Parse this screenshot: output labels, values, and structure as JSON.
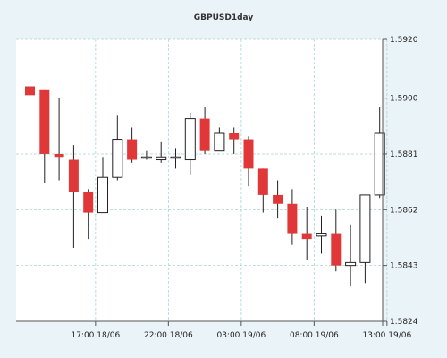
{
  "chart_data": {
    "type": "candlestick",
    "title": "GBPUSD1day",
    "xlabel": "",
    "ylabel": "",
    "ylim": [
      1.5824,
      1.592
    ],
    "y_ticks": [
      "1.5824",
      "1.5843",
      "1.5862",
      "1.5881",
      "1.5900",
      "1.5920"
    ],
    "x_ticks": [
      {
        "label": "17:00 18/06",
        "index": 4.5
      },
      {
        "label": "22:00 18/06",
        "index": 9.5
      },
      {
        "label": "03:00 19/06",
        "index": 14.5
      },
      {
        "label": "08:00 19/06",
        "index": 19.5
      },
      {
        "label": "13:00 19/06",
        "index": 24.5
      }
    ],
    "grid": true,
    "up_color": "#ffffff",
    "down_color": "#e03838",
    "candles": [
      {
        "open": 1.5904,
        "high": 1.5916,
        "low": 1.5891,
        "close": 1.5901
      },
      {
        "open": 1.5903,
        "high": 1.5903,
        "low": 1.5871,
        "close": 1.5881
      },
      {
        "open": 1.5881,
        "high": 1.59,
        "low": 1.5872,
        "close": 1.588
      },
      {
        "open": 1.5879,
        "high": 1.5884,
        "low": 1.5849,
        "close": 1.5868
      },
      {
        "open": 1.5868,
        "high": 1.5869,
        "low": 1.5852,
        "close": 1.5861
      },
      {
        "open": 1.5861,
        "high": 1.588,
        "low": 1.5861,
        "close": 1.5873
      },
      {
        "open": 1.5873,
        "high": 1.5894,
        "low": 1.5872,
        "close": 1.5886
      },
      {
        "open": 1.5886,
        "high": 1.589,
        "low": 1.5878,
        "close": 1.5879
      },
      {
        "open": 1.588,
        "high": 1.5882,
        "low": 1.5879,
        "close": 1.588
      },
      {
        "open": 1.5879,
        "high": 1.5885,
        "low": 1.5878,
        "close": 1.588
      },
      {
        "open": 1.588,
        "high": 1.5883,
        "low": 1.5876,
        "close": 1.588
      },
      {
        "open": 1.5879,
        "high": 1.5895,
        "low": 1.5874,
        "close": 1.5893
      },
      {
        "open": 1.5893,
        "high": 1.5897,
        "low": 1.5881,
        "close": 1.5882
      },
      {
        "open": 1.5882,
        "high": 1.589,
        "low": 1.5882,
        "close": 1.5888
      },
      {
        "open": 1.5888,
        "high": 1.589,
        "low": 1.5881,
        "close": 1.5886
      },
      {
        "open": 1.5886,
        "high": 1.5887,
        "low": 1.587,
        "close": 1.5876
      },
      {
        "open": 1.5876,
        "high": 1.5876,
        "low": 1.5861,
        "close": 1.5867
      },
      {
        "open": 1.5867,
        "high": 1.5872,
        "low": 1.5859,
        "close": 1.5864
      },
      {
        "open": 1.5864,
        "high": 1.5869,
        "low": 1.585,
        "close": 1.5854
      },
      {
        "open": 1.5854,
        "high": 1.5863,
        "low": 1.5845,
        "close": 1.5852
      },
      {
        "open": 1.5853,
        "high": 1.586,
        "low": 1.5847,
        "close": 1.5854
      },
      {
        "open": 1.5854,
        "high": 1.5862,
        "low": 1.5841,
        "close": 1.5843
      },
      {
        "open": 1.5843,
        "high": 1.5857,
        "low": 1.5836,
        "close": 1.5844
      },
      {
        "open": 1.5844,
        "high": 1.5867,
        "low": 1.5837,
        "close": 1.5867
      },
      {
        "open": 1.5867,
        "high": 1.5897,
        "low": 1.5866,
        "close": 1.5888
      }
    ]
  }
}
